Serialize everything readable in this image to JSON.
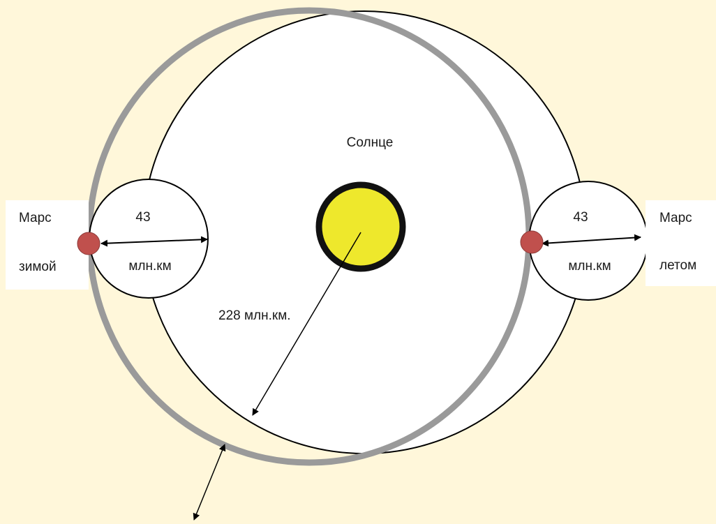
{
  "sun_label": "Солнце",
  "orbit_radius_label": "228 млн.км.",
  "mars_winter": {
    "line1": "Марс",
    "line2": "зимой",
    "distance": 43,
    "unit": "млн.км"
  },
  "mars_summer": {
    "line1": "Марс",
    "line2": "летом",
    "distance": 43,
    "unit": "млн.км"
  }
}
